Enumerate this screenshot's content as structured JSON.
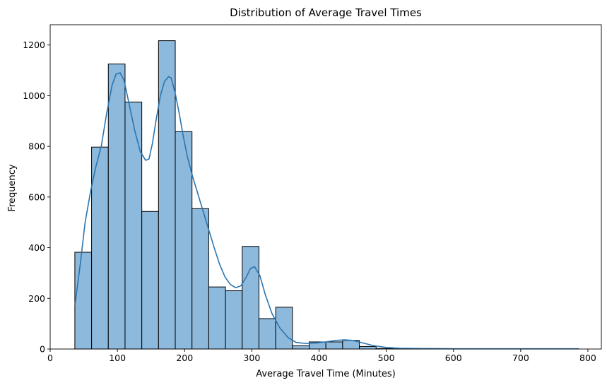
{
  "chart_data": {
    "type": "bar",
    "subtype": "histogram-with-kde",
    "title": "Distribution of Average Travel Times",
    "xlabel": "Average Travel Time (Minutes)",
    "ylabel": "Frequency",
    "xlim": [
      0,
      820
    ],
    "ylim": [
      0,
      1280
    ],
    "xticks": [
      0,
      100,
      200,
      300,
      400,
      500,
      600,
      700,
      800
    ],
    "yticks": [
      0,
      200,
      400,
      600,
      800,
      1000,
      1200
    ],
    "grid": false,
    "legend": "none",
    "bar_color": "#8db9dc",
    "bar_edge_color": "#000000",
    "kde_color": "#2a75b0",
    "bins": [
      {
        "start": 36.7,
        "end": 61.6,
        "count": 382
      },
      {
        "start": 61.6,
        "end": 86.5,
        "count": 797
      },
      {
        "start": 86.5,
        "end": 111.4,
        "count": 1125
      },
      {
        "start": 111.4,
        "end": 136.3,
        "count": 975
      },
      {
        "start": 136.3,
        "end": 161.2,
        "count": 543
      },
      {
        "start": 161.2,
        "end": 186.1,
        "count": 1217
      },
      {
        "start": 186.1,
        "end": 211.0,
        "count": 858
      },
      {
        "start": 211.0,
        "end": 235.9,
        "count": 554
      },
      {
        "start": 235.9,
        "end": 260.8,
        "count": 245
      },
      {
        "start": 260.8,
        "end": 285.7,
        "count": 230
      },
      {
        "start": 285.7,
        "end": 310.6,
        "count": 405
      },
      {
        "start": 310.6,
        "end": 335.5,
        "count": 120
      },
      {
        "start": 335.5,
        "end": 360.4,
        "count": 165
      },
      {
        "start": 360.4,
        "end": 385.3,
        "count": 13
      },
      {
        "start": 385.3,
        "end": 410.2,
        "count": 28
      },
      {
        "start": 410.2,
        "end": 435.1,
        "count": 28
      },
      {
        "start": 435.1,
        "end": 460.0,
        "count": 34
      },
      {
        "start": 460.0,
        "end": 484.9,
        "count": 10
      },
      {
        "start": 484.9,
        "end": 509.8,
        "count": 2
      },
      {
        "start": 509.8,
        "end": 534.7,
        "count": 1
      },
      {
        "start": 534.7,
        "end": 559.6,
        "count": 1
      },
      {
        "start": 559.6,
        "end": 584.5,
        "count": 1
      },
      {
        "start": 584.5,
        "end": 609.4,
        "count": 1
      },
      {
        "start": 609.4,
        "end": 634.3,
        "count": 1
      },
      {
        "start": 634.3,
        "end": 659.2,
        "count": 1
      },
      {
        "start": 659.2,
        "end": 684.1,
        "count": 1
      },
      {
        "start": 684.1,
        "end": 709.0,
        "count": 1
      },
      {
        "start": 709.0,
        "end": 733.9,
        "count": 1
      },
      {
        "start": 733.9,
        "end": 758.8,
        "count": 1
      },
      {
        "start": 758.8,
        "end": 786.0,
        "count": 1
      }
    ],
    "kde": {
      "x": [
        37,
        45,
        52,
        60,
        68,
        76,
        84,
        92,
        98,
        104,
        110,
        118,
        126,
        134,
        142,
        147,
        152,
        158,
        164,
        170,
        176,
        180,
        186,
        192,
        198,
        204,
        212,
        220,
        228,
        236,
        244,
        252,
        260,
        268,
        276,
        284,
        292,
        298,
        304,
        312,
        320,
        330,
        342,
        354,
        366,
        380,
        395,
        410,
        425,
        438,
        450,
        465,
        480,
        500,
        520,
        550,
        600,
        650,
        700,
        750,
        786
      ],
      "y": [
        175,
        340,
        500,
        620,
        720,
        800,
        930,
        1040,
        1085,
        1090,
        1060,
        960,
        860,
        780,
        745,
        750,
        810,
        910,
        1000,
        1055,
        1075,
        1070,
        1010,
        930,
        840,
        760,
        680,
        610,
        540,
        470,
        400,
        335,
        285,
        255,
        242,
        250,
        285,
        318,
        325,
        290,
        215,
        140,
        82,
        45,
        26,
        22,
        24,
        28,
        34,
        36,
        34,
        24,
        14,
        6,
        3,
        2,
        1,
        1,
        1,
        1,
        1
      ]
    }
  }
}
